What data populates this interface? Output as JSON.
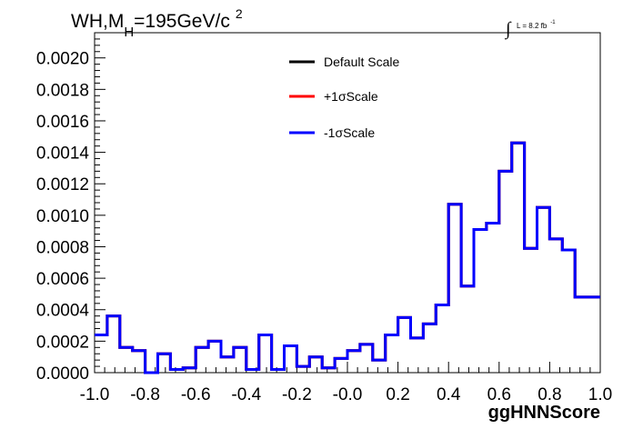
{
  "chart_data": {
    "type": "line",
    "title": {
      "prefix": "WH,M",
      "subscript": "H",
      "middle": "=195GeV/c",
      "superscript": "2"
    },
    "lumi": {
      "integral": "∫",
      "text": "L = 8.2 fb",
      "superscript": "-1"
    },
    "xlabel": "ggHNNScore",
    "ylabel": "",
    "xlim": [
      -1.0,
      1.0
    ],
    "ylim": [
      0.0,
      0.00216
    ],
    "x_ticks": [
      "-1.0",
      "-0.8",
      "-0.6",
      "-0.4",
      "-0.2",
      "-0.0",
      "0.2",
      "0.4",
      "0.6",
      "0.8",
      "1.0"
    ],
    "y_ticks": [
      "0.0000",
      "0.0002",
      "0.0004",
      "0.0006",
      "0.0008",
      "0.0010",
      "0.0012",
      "0.0014",
      "0.0016",
      "0.0018",
      "0.0020"
    ],
    "bin_edges_start": -1.0,
    "bin_width": 0.05,
    "legend_position": "top-center",
    "series": [
      {
        "name": "Default Scale",
        "color": "#000000",
        "values": [
          0.00024,
          0.00036,
          0.00016,
          0.00014,
          0.0,
          0.00012,
          2e-05,
          3e-05,
          0.00016,
          0.0002,
          0.0001,
          0.00016,
          2e-05,
          0.00024,
          2e-05,
          0.00017,
          4e-05,
          0.0001,
          3e-05,
          9e-05,
          0.00014,
          0.00018,
          8e-05,
          0.00024,
          0.00035,
          0.00022,
          0.00031,
          0.00043,
          0.00107,
          0.00055,
          0.00091,
          0.00095,
          0.00128,
          0.00146,
          0.00079,
          0.00105,
          0.00085,
          0.00078,
          0.00048,
          0.00048
        ]
      },
      {
        "name": "+1σScale",
        "color": "#ff0000",
        "values": [
          0.00024,
          0.00036,
          0.00016,
          0.00014,
          0.0,
          0.00012,
          2e-05,
          3e-05,
          0.00016,
          0.0002,
          0.0001,
          0.00016,
          2e-05,
          0.00024,
          2e-05,
          0.00017,
          4e-05,
          0.0001,
          3e-05,
          9e-05,
          0.00014,
          0.00018,
          8e-05,
          0.00024,
          0.00035,
          0.00022,
          0.00031,
          0.00043,
          0.00107,
          0.00055,
          0.00091,
          0.00095,
          0.00128,
          0.00146,
          0.00079,
          0.00105,
          0.00085,
          0.00078,
          0.00048,
          0.00048
        ]
      },
      {
        "name": "-1σScale",
        "color": "#0000ff",
        "values": [
          0.00024,
          0.00036,
          0.00016,
          0.00014,
          0.0,
          0.00012,
          2e-05,
          3e-05,
          0.00016,
          0.0002,
          0.0001,
          0.00016,
          2e-05,
          0.00024,
          2e-05,
          0.00017,
          4e-05,
          0.0001,
          3e-05,
          9e-05,
          0.00014,
          0.00018,
          8e-05,
          0.00024,
          0.00035,
          0.00022,
          0.00031,
          0.00043,
          0.00107,
          0.00055,
          0.00091,
          0.00095,
          0.00128,
          0.00146,
          0.00079,
          0.00105,
          0.00085,
          0.00078,
          0.00048,
          0.00048
        ]
      }
    ]
  }
}
